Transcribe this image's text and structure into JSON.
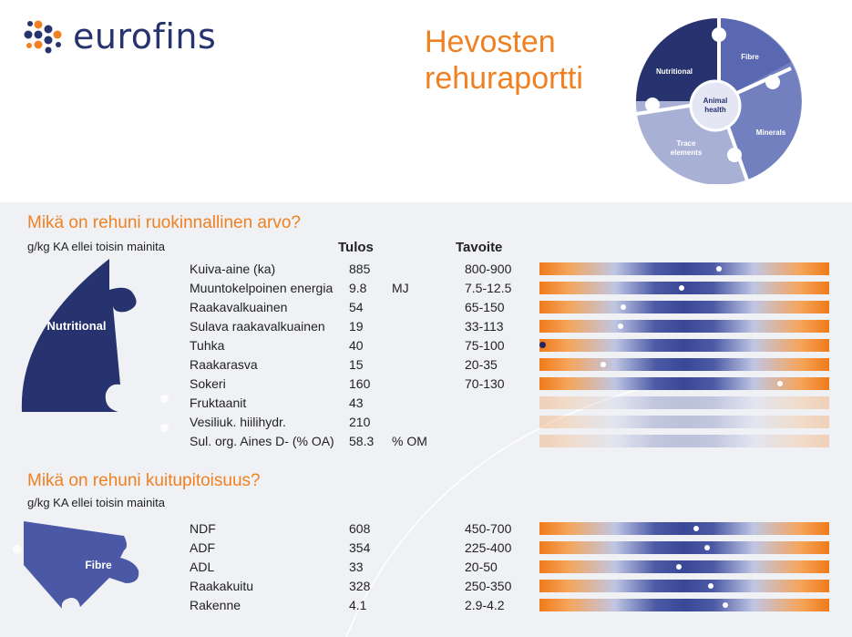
{
  "header": {
    "logo_text": "eurofins",
    "title_line1": "Hevosten",
    "title_line2": "rehuraportti",
    "wheel": {
      "center_line1": "Animal",
      "center_line2": "health",
      "segments": [
        "Nutritional",
        "Fibre",
        "Minerals",
        "Trace",
        "elements"
      ]
    }
  },
  "nutrition": {
    "title": "Mikä on rehuni ruokinnallinen arvo?",
    "subtitle": "g/kg KA ellei toisin mainita",
    "piece_label": "Nutritional",
    "col_result": "Tulos",
    "col_target": "Tavoite",
    "rows": [
      {
        "name": "Kuiva-aine (ka)",
        "value": "885",
        "unit": "",
        "target": "800-900",
        "pos": 0.62,
        "faded": false,
        "dot": "white"
      },
      {
        "name": "Muuntokelpoinen energia",
        "value": "9.8",
        "unit": "MJ",
        "target": "7.5-12.5",
        "pos": 0.49,
        "faded": false,
        "dot": "white"
      },
      {
        "name": "Raakavalkuainen",
        "value": "54",
        "unit": "",
        "target": "65-150",
        "pos": 0.29,
        "faded": false,
        "dot": "white"
      },
      {
        "name": "Sulava raakavalkuainen",
        "value": "19",
        "unit": "",
        "target": "33-113",
        "pos": 0.28,
        "faded": false,
        "dot": "white"
      },
      {
        "name": "Tuhka",
        "value": "40",
        "unit": "",
        "target": "75-100",
        "pos": 0.01,
        "faded": false,
        "dot": "navy"
      },
      {
        "name": "Raakarasva",
        "value": "15",
        "unit": "",
        "target": "20-35",
        "pos": 0.22,
        "faded": false,
        "dot": "white"
      },
      {
        "name": "Sokeri",
        "value": "160",
        "unit": "",
        "target": "70-130",
        "pos": 0.83,
        "faded": false,
        "dot": "white"
      },
      {
        "name": "Fruktaanit",
        "value": "43",
        "unit": "",
        "target": "",
        "pos": null,
        "faded": true,
        "dot": ""
      },
      {
        "name": "Vesiliuk. hiilihydr.",
        "value": "210",
        "unit": "",
        "target": "",
        "pos": null,
        "faded": true,
        "dot": ""
      },
      {
        "name": "Sul. org. Aines D- (% OA)",
        "value": "58.3",
        "unit": "% OM",
        "target": "",
        "pos": null,
        "faded": true,
        "dot": ""
      }
    ]
  },
  "fibre": {
    "title": "Mikä on rehuni kuitupitoisuus?",
    "subtitle": "g/kg KA ellei toisin mainita",
    "piece_label": "Fibre",
    "rows": [
      {
        "name": "NDF",
        "value": "608",
        "unit": "",
        "target": "450-700",
        "pos": 0.54,
        "faded": false,
        "dot": "white"
      },
      {
        "name": "ADF",
        "value": "354",
        "unit": "",
        "target": "225-400",
        "pos": 0.58,
        "faded": false,
        "dot": "white"
      },
      {
        "name": "ADL",
        "value": "33",
        "unit": "",
        "target": "20-50",
        "pos": 0.48,
        "faded": false,
        "dot": "white"
      },
      {
        "name": "Raakakuitu",
        "value": "328",
        "unit": "",
        "target": "250-350",
        "pos": 0.59,
        "faded": false,
        "dot": "white"
      },
      {
        "name": "Rakenne",
        "value": "4.1",
        "unit": "",
        "target": "2.9-4.2",
        "pos": 0.64,
        "faded": false,
        "dot": "white"
      }
    ]
  },
  "colors": {
    "orange": "#f08122",
    "navy": "#27336e",
    "mid_blue": "#4a58a5",
    "light_blue": "#8d97c9"
  }
}
